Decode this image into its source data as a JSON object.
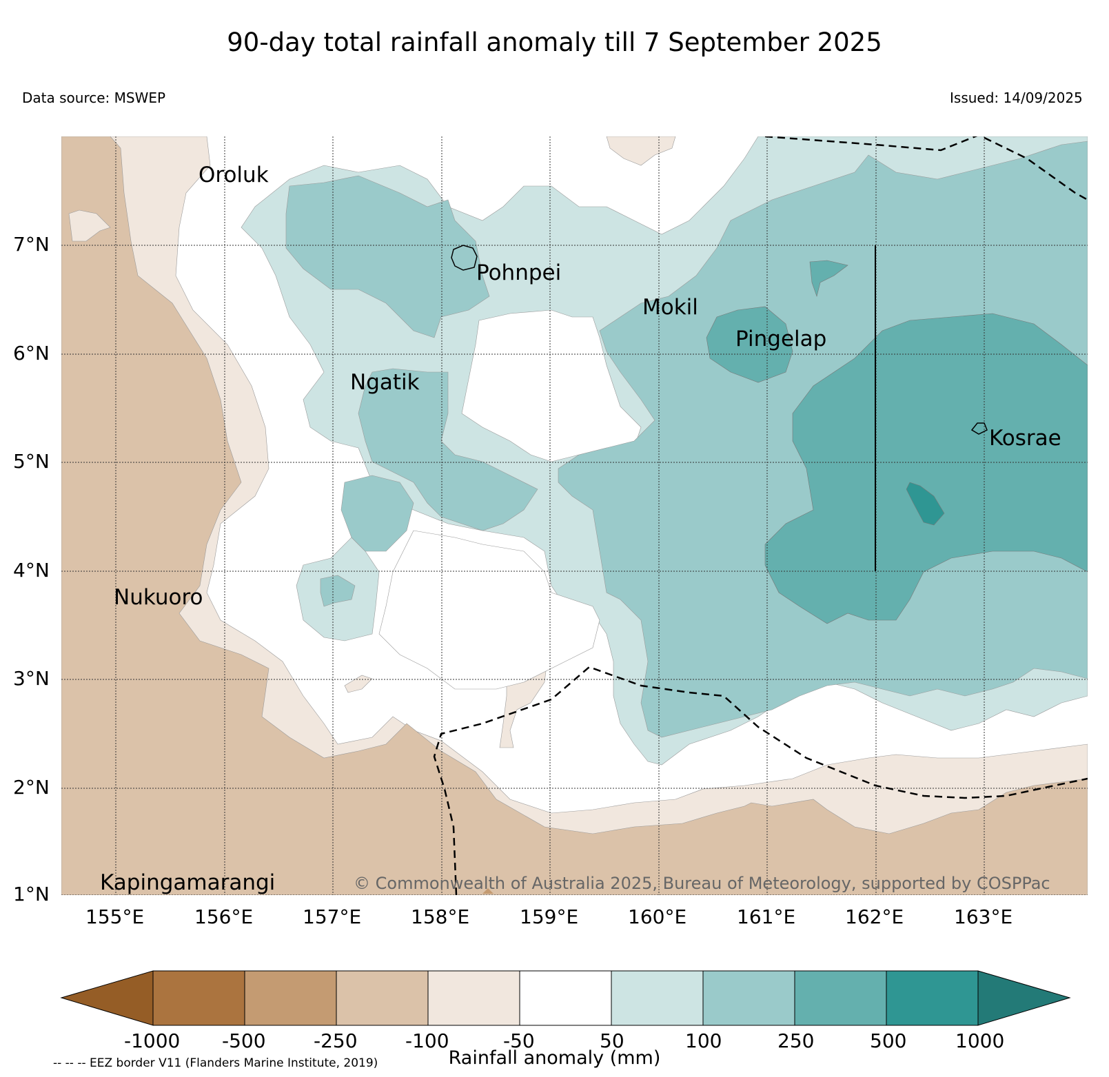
{
  "header": {
    "title": "90-day total rainfall anomaly till 7 September 2025",
    "source": "Data source: MSWEP",
    "issued": "Issued: 14/09/2025"
  },
  "map": {
    "lon_labels": [
      "155°E",
      "156°E",
      "157°E",
      "158°E",
      "159°E",
      "160°E",
      "161°E",
      "162°E",
      "163°E"
    ],
    "lat_labels": [
      "7°N",
      "6°N",
      "5°N",
      "4°N",
      "3°N",
      "2°N",
      "1°N"
    ],
    "places": {
      "oroluk": "Oroluk",
      "pohnpei": "Pohnpei",
      "mokil": "Mokil",
      "pingelap": "Pingelap",
      "ngatik": "Ngatik",
      "kosrae": "Kosrae",
      "nukuoro": "Nukuoro",
      "kapingamarangi": "Kapingamarangi"
    },
    "copyright": "© Commonwealth of Australia 2025, Bureau of Meteorology, supported by COSPPac"
  },
  "colorbar": {
    "title": "Rainfall anomaly (mm)",
    "ticks": [
      "-1000",
      "-500",
      "-250",
      "-100",
      "-50",
      "50",
      "100",
      "250",
      "500",
      "1000"
    ],
    "colors": [
      "#955d26",
      "#ab743f",
      "#c49b72",
      "#dbc2a9",
      "#f1e7de",
      "#ffffff",
      "#cde4e3",
      "#9acaca",
      "#64b0ae",
      "#2f9693",
      "#237a77"
    ]
  },
  "footnote": "-- -- -- EEZ border V11 (Flanders Marine Institute, 2019)"
}
